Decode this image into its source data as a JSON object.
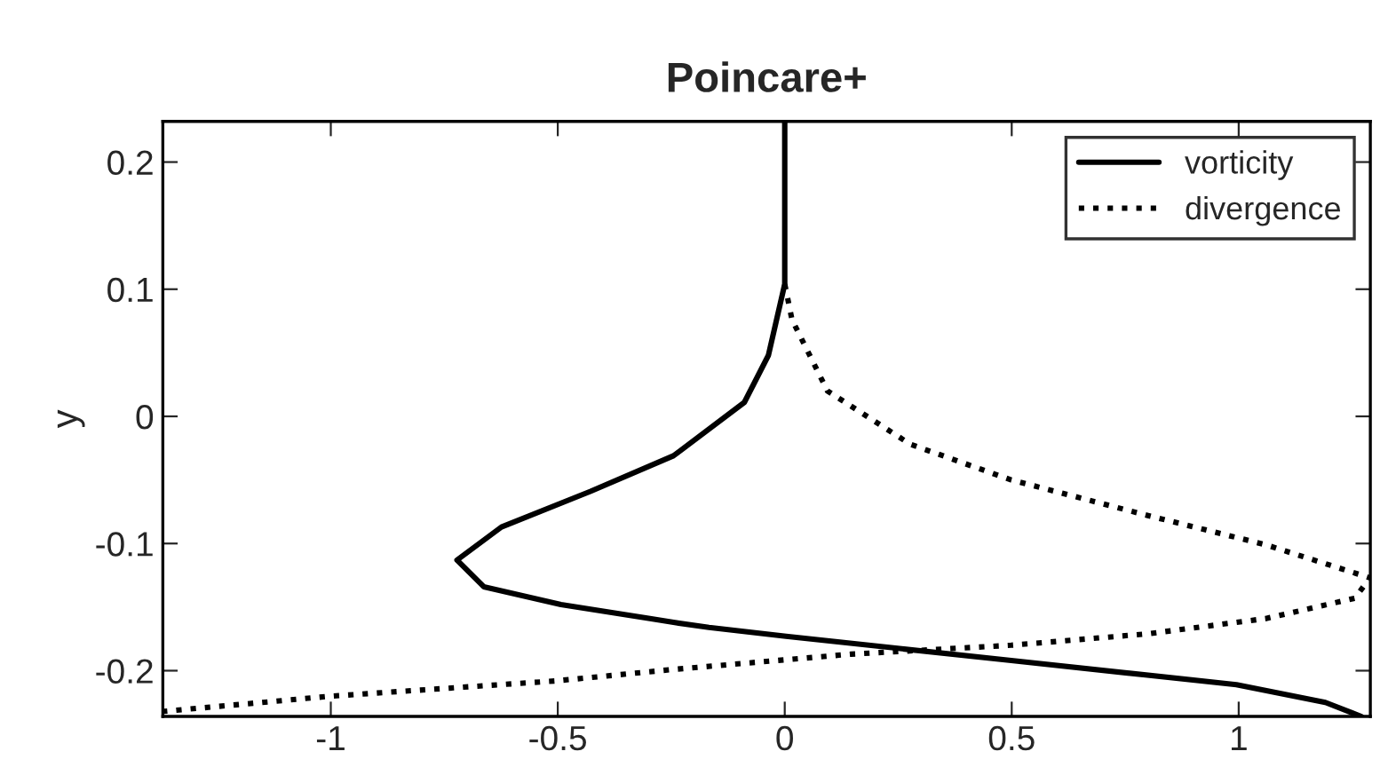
{
  "chart_data": {
    "type": "line",
    "title": "Poincare+",
    "ylabel": "y",
    "xlim": [
      -1.37,
      1.29
    ],
    "ylim": [
      -0.236,
      0.232
    ],
    "xticks": [
      -1,
      -0.5,
      0,
      0.5,
      1
    ],
    "yticks": [
      -0.2,
      -0.1,
      0,
      0.1,
      0.2
    ],
    "grid": false,
    "legend": "top right",
    "series": [
      {
        "name": "vorticity",
        "color": "#000000",
        "line_style": "solid",
        "x": [
          0,
          0,
          -0.036,
          -0.089,
          -0.245,
          -0.428,
          -0.624,
          -0.722,
          -0.663,
          -0.493,
          -0.297,
          -0.245,
          -0.167,
          0.003,
          0.499,
          0.995,
          1.191,
          1.27
        ],
        "values": [
          0.232,
          0.104,
          0.048,
          0.011,
          -0.031,
          -0.059,
          -0.087,
          -0.113,
          -0.134,
          -0.148,
          -0.159,
          -0.162,
          -0.166,
          -0.173,
          -0.192,
          -0.211,
          -0.225,
          -0.236
        ]
      },
      {
        "name": "divergence",
        "color": "#000000",
        "line_style": "dotted",
        "x": [
          0,
          0.016,
          0.094,
          0.277,
          0.499,
          0.8,
          1.06,
          1.289,
          1.256,
          1.06,
          0.8,
          0.499,
          0.146,
          -0.245,
          -0.503,
          -0.998,
          -1.368
        ],
        "values": [
          0.104,
          0.076,
          0.02,
          -0.022,
          -0.05,
          -0.078,
          -0.101,
          -0.127,
          -0.143,
          -0.159,
          -0.171,
          -0.18,
          -0.187,
          -0.199,
          -0.208,
          -0.22,
          -0.232
        ]
      }
    ]
  }
}
